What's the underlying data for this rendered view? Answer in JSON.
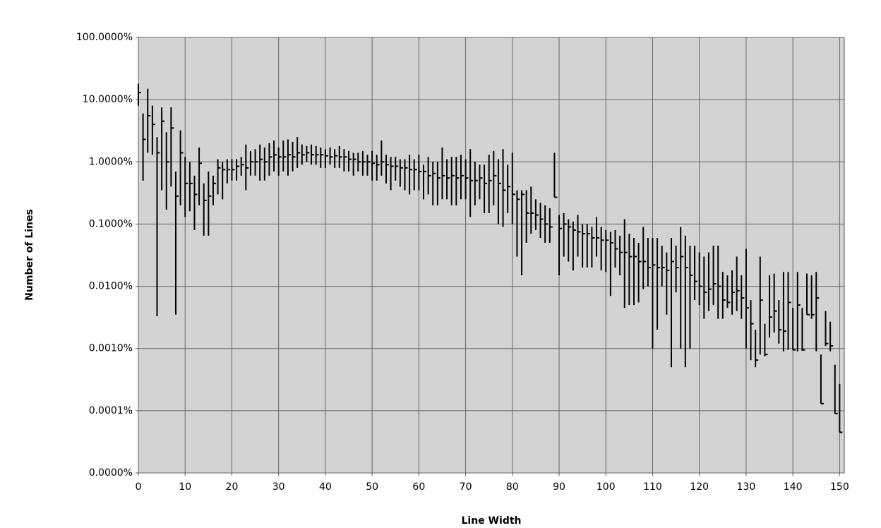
{
  "chart_data": {
    "type": "hlc",
    "x_label": "Line Width",
    "y_label": "Number of Lines",
    "yscale": "log",
    "grid": true,
    "color": "#000000",
    "xlim": [
      0,
      151
    ],
    "xticks": [
      0,
      10,
      20,
      30,
      40,
      50,
      60,
      70,
      80,
      90,
      100,
      110,
      120,
      130,
      140,
      150
    ],
    "ylim": [
      1e-05,
      100
    ],
    "yticks": [
      {
        "value": 1e-05,
        "label": "0.0000%"
      },
      {
        "value": 0.0001,
        "label": "0.0001%"
      },
      {
        "value": 0.001,
        "label": "0.0010%"
      },
      {
        "value": 0.01,
        "label": "0.0100%"
      },
      {
        "value": 0.1,
        "label": "0.1000%"
      },
      {
        "value": 1,
        "label": "1.0000%"
      },
      {
        "value": 10,
        "label": "10.0000%"
      },
      {
        "value": 100,
        "label": "100.0000%"
      }
    ],
    "x": [
      0,
      1,
      2,
      3,
      4,
      5,
      6,
      7,
      8,
      9,
      10,
      11,
      12,
      13,
      14,
      15,
      16,
      17,
      18,
      19,
      20,
      21,
      22,
      23,
      24,
      25,
      26,
      27,
      28,
      29,
      30,
      31,
      32,
      33,
      34,
      35,
      36,
      37,
      38,
      39,
      40,
      41,
      42,
      43,
      44,
      45,
      46,
      47,
      48,
      49,
      50,
      51,
      52,
      53,
      54,
      55,
      56,
      57,
      58,
      59,
      60,
      61,
      62,
      63,
      64,
      65,
      66,
      67,
      68,
      69,
      70,
      71,
      72,
      73,
      74,
      75,
      76,
      77,
      78,
      79,
      80,
      81,
      82,
      83,
      84,
      85,
      86,
      87,
      88,
      89,
      90,
      91,
      92,
      93,
      94,
      95,
      96,
      97,
      98,
      99,
      100,
      101,
      102,
      103,
      104,
      105,
      106,
      107,
      108,
      109,
      110,
      111,
      112,
      113,
      114,
      115,
      116,
      117,
      118,
      119,
      120,
      121,
      122,
      123,
      124,
      125,
      126,
      127,
      128,
      129,
      130,
      131,
      132,
      133,
      134,
      135,
      136,
      137,
      138,
      139,
      140,
      141,
      142,
      143,
      144,
      145,
      146,
      147,
      148,
      149,
      150
    ],
    "high": [
      18,
      6,
      15,
      8,
      2.5,
      7.5,
      3,
      7.5,
      0.7,
      3.2,
      1.2,
      1,
      0.6,
      1.7,
      0.45,
      0.7,
      0.6,
      1.1,
      1,
      1.1,
      1.1,
      1.1,
      1.2,
      1.9,
      1.5,
      1.6,
      1.9,
      1.7,
      2,
      2.2,
      1.7,
      2.2,
      2.3,
      2.1,
      2.5,
      1.9,
      1.8,
      1.9,
      1.8,
      1.7,
      1.6,
      1.7,
      1.6,
      1.8,
      1.6,
      1.5,
      1.4,
      1.4,
      1.5,
      1.3,
      1.5,
      1.3,
      2.2,
      1.3,
      1.2,
      1.2,
      1.1,
      1.1,
      1.3,
      1.1,
      1.3,
      0.9,
      1.2,
      1,
      1,
      1.7,
      1.1,
      1.2,
      1.2,
      1.3,
      1.1,
      1.6,
      1,
      0.9,
      0.9,
      1.3,
      1.5,
      1.1,
      1.6,
      0.9,
      1.4,
      0.35,
      0.35,
      0.35,
      0.4,
      0.25,
      0.22,
      0.2,
      0.18,
      1.4,
      0.14,
      0.15,
      0.12,
      0.11,
      0.14,
      0.1,
      0.1,
      0.09,
      0.13,
      0.09,
      0.08,
      0.075,
      0.08,
      0.065,
      0.12,
      0.07,
      0.06,
      0.05,
      0.09,
      0.06,
      0.06,
      0.06,
      0.045,
      0.035,
      0.06,
      0.045,
      0.09,
      0.065,
      0.045,
      0.045,
      0.035,
      0.03,
      0.035,
      0.045,
      0.045,
      0.017,
      0.015,
      0.018,
      0.03,
      0.015,
      0.04,
      0.006,
      0.002,
      0.03,
      0.0025,
      0.015,
      0.016,
      0.006,
      0.017,
      0.017,
      0.0045,
      0.017,
      0.0045,
      0.016,
      0.015,
      0.017,
      0.0008,
      0.004,
      0.0027,
      0.00055,
      0.00027
    ],
    "low": [
      8,
      0.5,
      1.4,
      1.3,
      0.0033,
      0.35,
      0.17,
      0.4,
      0.0035,
      0.2,
      0.13,
      0.16,
      0.08,
      0.2,
      0.065,
      0.065,
      0.2,
      0.3,
      0.25,
      0.45,
      0.5,
      0.5,
      0.6,
      0.35,
      0.6,
      0.6,
      0.5,
      0.5,
      0.6,
      0.7,
      0.6,
      0.7,
      0.6,
      0.7,
      0.8,
      0.9,
      1,
      0.9,
      0.9,
      0.8,
      0.8,
      0.9,
      0.8,
      0.8,
      0.7,
      0.7,
      0.6,
      0.7,
      0.6,
      0.6,
      0.5,
      0.5,
      0.6,
      0.45,
      0.35,
      0.5,
      0.4,
      0.35,
      0.3,
      0.35,
      0.35,
      0.25,
      0.3,
      0.2,
      0.2,
      0.25,
      0.25,
      0.2,
      0.2,
      0.25,
      0.25,
      0.13,
      0.2,
      0.25,
      0.15,
      0.15,
      0.2,
      0.1,
      0.09,
      0.15,
      0.1,
      0.03,
      0.015,
      0.05,
      0.07,
      0.08,
      0.06,
      0.05,
      0.05,
      0.27,
      0.015,
      0.03,
      0.025,
      0.018,
      0.03,
      0.02,
      0.02,
      0.02,
      0.03,
      0.018,
      0.017,
      0.007,
      0.02,
      0.015,
      0.0045,
      0.005,
      0.005,
      0.0055,
      0.009,
      0.01,
      0.001,
      0.002,
      0.01,
      0.0035,
      0.0005,
      0.008,
      0.001,
      0.0005,
      0.001,
      0.006,
      0.005,
      0.003,
      0.004,
      0.005,
      0.003,
      0.003,
      0.0045,
      0.0035,
      0.004,
      0.003,
      0.001,
      0.00065,
      0.0005,
      0.0008,
      0.00075,
      0.0015,
      0.0018,
      0.0012,
      0.0009,
      0.00095,
      0.00095,
      0.0009,
      0.00092,
      0.0035,
      0.003,
      0.0009,
      0.00013,
      0.0011,
      0.0009,
      9e-05,
      4.5e-05
    ],
    "close": [
      13,
      2.3,
      5.5,
      4,
      1.4,
      4.5,
      1,
      3.5,
      0.28,
      1.4,
      0.45,
      0.45,
      0.3,
      0.95,
      0.24,
      0.28,
      0.45,
      0.8,
      0.75,
      0.75,
      0.75,
      0.85,
      0.9,
      0.8,
      1,
      1,
      1.1,
      1,
      1.2,
      1.3,
      1.2,
      1.2,
      1.3,
      1.2,
      1.4,
      1.3,
      1.4,
      1.3,
      1.3,
      1.3,
      1.25,
      1.2,
      1.25,
      1.2,
      1.2,
      1.1,
      1.1,
      1,
      1,
      1,
      0.95,
      0.9,
      1,
      0.9,
      0.85,
      0.85,
      0.8,
      0.8,
      0.75,
      0.75,
      0.7,
      0.7,
      0.6,
      0.65,
      0.55,
      0.6,
      0.55,
      0.6,
      0.55,
      0.6,
      0.55,
      0.5,
      0.5,
      0.55,
      0.45,
      0.5,
      0.6,
      0.45,
      0.35,
      0.4,
      0.3,
      0.25,
      0.3,
      0.15,
      0.15,
      0.14,
      0.12,
      0.1,
      0.09,
      0.27,
      0.085,
      0.1,
      0.09,
      0.08,
      0.075,
      0.07,
      0.07,
      0.06,
      0.06,
      0.055,
      0.055,
      0.05,
      0.04,
      0.035,
      0.035,
      0.03,
      0.03,
      0.025,
      0.025,
      0.02,
      0.022,
      0.02,
      0.02,
      0.018,
      0.025,
      0.02,
      0.03,
      0.02,
      0.015,
      0.012,
      0.01,
      0.008,
      0.009,
      0.011,
      0.01,
      0.006,
      0.0055,
      0.008,
      0.0085,
      0.0065,
      0.0045,
      0.0025,
      0.00065,
      0.006,
      0.0008,
      0.0032,
      0.004,
      0.002,
      0.0019,
      0.0055,
      0.00095,
      0.005,
      0.00095,
      0.0035,
      0.0035,
      0.0065,
      0.00013,
      0.0012,
      0.0011,
      9e-05,
      4.5e-05
    ]
  }
}
